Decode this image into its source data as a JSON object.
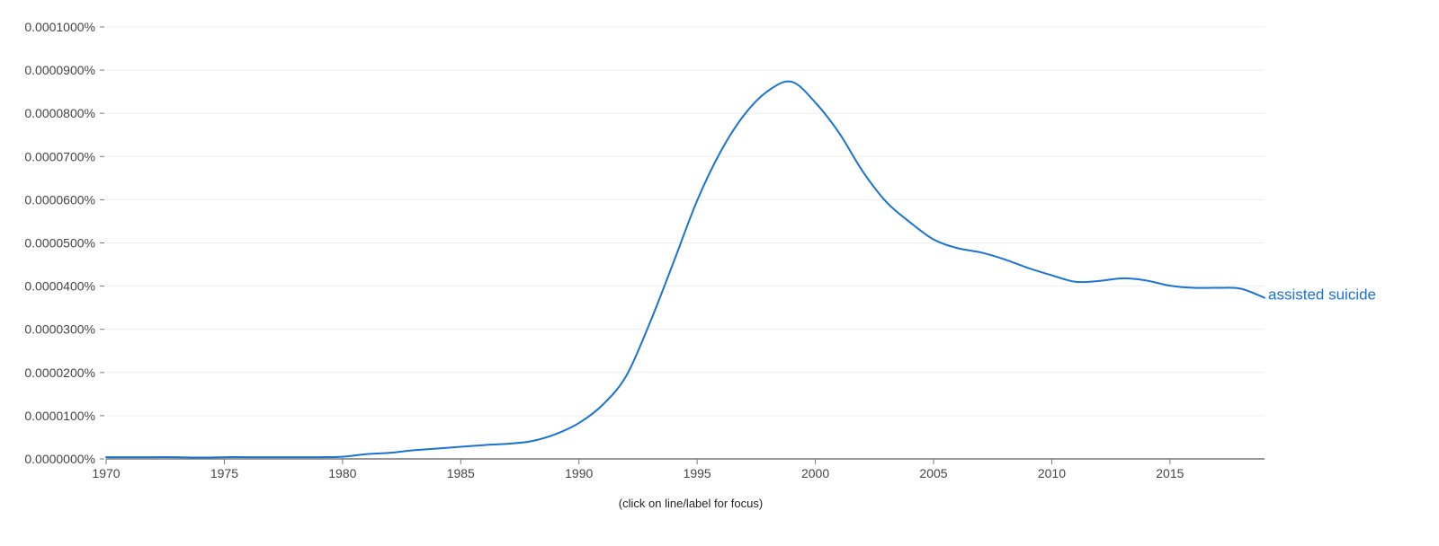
{
  "chart_data": {
    "type": "line",
    "title": "",
    "xlabel": "",
    "ylabel": "",
    "xlim": [
      1970,
      2019
    ],
    "ylim": [
      0,
      0.0001
    ],
    "x_ticks": [
      1970,
      1975,
      1980,
      1985,
      1990,
      1995,
      2000,
      2005,
      2010,
      2015
    ],
    "x_tick_labels": [
      "1970",
      "1975",
      "1980",
      "1985",
      "1990",
      "1995",
      "2000",
      "2005",
      "2010",
      "2015"
    ],
    "y_ticks": [
      0,
      1e-05,
      2e-05,
      3e-05,
      4e-05,
      5e-05,
      6e-05,
      7e-05,
      8e-05,
      9e-05,
      0.0001
    ],
    "y_tick_labels": [
      "0.0000000%",
      "0.0000100%",
      "0.0000200%",
      "0.0000300%",
      "0.0000400%",
      "0.0000500%",
      "0.0000600%",
      "0.0000700%",
      "0.0000800%",
      "0.0000900%",
      "0.0001000%"
    ],
    "grid": true,
    "colors": {
      "series": "#1a73d1",
      "grid": "#eeeeee",
      "axis": "#777777",
      "tick_text": "#444444"
    },
    "series": [
      {
        "name": "assisted suicide",
        "x": [
          1970,
          1971,
          1972,
          1973,
          1974,
          1975,
          1976,
          1977,
          1978,
          1979,
          1980,
          1981,
          1982,
          1983,
          1984,
          1985,
          1986,
          1987,
          1988,
          1989,
          1990,
          1991,
          1992,
          1993,
          1994,
          1995,
          1996,
          1997,
          1998,
          1999,
          2000,
          2001,
          2002,
          2003,
          2004,
          2005,
          2006,
          2007,
          2008,
          2009,
          2010,
          2011,
          2012,
          2013,
          2014,
          2015,
          2016,
          2017,
          2018,
          2019
        ],
        "values": [
          4e-07,
          4e-07,
          4e-07,
          4e-07,
          3e-07,
          4e-07,
          4e-07,
          4e-07,
          4e-07,
          4e-07,
          5e-07,
          1.1e-06,
          1.4e-06,
          2e-06,
          2.4e-06,
          2.8e-06,
          3.2e-06,
          3.5e-06,
          4.1e-06,
          5.7e-06,
          8.3e-06,
          1.25e-05,
          1.92e-05,
          3.15e-05,
          4.55e-05,
          5.98e-05,
          7.12e-05,
          7.97e-05,
          8.52e-05,
          8.73e-05,
          8.25e-05,
          7.55e-05,
          6.66e-05,
          5.95e-05,
          5.48e-05,
          5.08e-05,
          4.88e-05,
          4.78e-05,
          4.62e-05,
          4.42e-05,
          4.25e-05,
          4.1e-05,
          4.12e-05,
          4.18e-05,
          4.13e-05,
          4.01e-05,
          3.96e-05,
          3.96e-05,
          3.94e-05,
          3.73e-05
        ]
      }
    ]
  },
  "hint": "(click on line/label for focus)"
}
